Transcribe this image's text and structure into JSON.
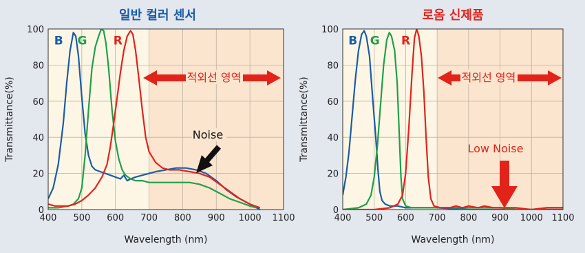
{
  "colors": {
    "background": "#e3e7ee",
    "title": "#1a5ca8",
    "title_right": "#e2231a",
    "plot_fill": "#fdf6e4",
    "ir_fill": "#fbe5cf",
    "B": "#1a5ca8",
    "G": "#1fa04a",
    "R": "#e2231a",
    "arrow_red": "#e2231a",
    "arrow_black": "#111111"
  },
  "chart_data": [
    {
      "type": "line",
      "title": "일반 컬러 센서",
      "xlabel": "Wavelength (nm)",
      "ylabel": "Transmittance(%)",
      "xlim": [
        400,
        1100
      ],
      "ylim": [
        0,
        100
      ],
      "xticks": [
        "400",
        "500",
        "600",
        "700",
        "800",
        "900",
        "1000",
        "1100"
      ],
      "yticks": [
        "0",
        "20",
        "40",
        "60",
        "80",
        "100"
      ],
      "grid": true,
      "ir_region_from": 700,
      "series": [
        {
          "name": "B",
          "color_key": "B",
          "label_at": [
            418,
            94
          ],
          "points": [
            [
              400,
              6
            ],
            [
              415,
              12
            ],
            [
              430,
              25
            ],
            [
              445,
              48
            ],
            [
              455,
              70
            ],
            [
              465,
              88
            ],
            [
              475,
              98
            ],
            [
              482,
              96
            ],
            [
              490,
              85
            ],
            [
              500,
              62
            ],
            [
              510,
              42
            ],
            [
              520,
              30
            ],
            [
              530,
              24
            ],
            [
              540,
              22
            ],
            [
              555,
              21
            ],
            [
              570,
              20
            ],
            [
              585,
              19
            ],
            [
              600,
              18
            ],
            [
              615,
              17
            ],
            [
              625,
              19
            ],
            [
              635,
              16
            ],
            [
              645,
              17
            ],
            [
              660,
              18
            ],
            [
              680,
              19
            ],
            [
              700,
              20
            ],
            [
              720,
              21
            ],
            [
              750,
              22
            ],
            [
              780,
              23
            ],
            [
              810,
              23
            ],
            [
              840,
              22
            ],
            [
              870,
              20
            ],
            [
              900,
              16
            ],
            [
              930,
              11
            ],
            [
              960,
              7
            ],
            [
              990,
              4
            ],
            [
              1010,
              2
            ],
            [
              1030,
              0
            ]
          ]
        },
        {
          "name": "G",
          "color_key": "G",
          "label_at": [
            487,
            94
          ],
          "points": [
            [
              400,
              1
            ],
            [
              430,
              1
            ],
            [
              460,
              2
            ],
            [
              475,
              3
            ],
            [
              490,
              6
            ],
            [
              500,
              12
            ],
            [
              510,
              30
            ],
            [
              520,
              55
            ],
            [
              530,
              78
            ],
            [
              540,
              90
            ],
            [
              550,
              96
            ],
            [
              558,
              100
            ],
            [
              565,
              99
            ],
            [
              572,
              92
            ],
            [
              580,
              78
            ],
            [
              590,
              55
            ],
            [
              600,
              38
            ],
            [
              610,
              28
            ],
            [
              620,
              22
            ],
            [
              630,
              19
            ],
            [
              645,
              17
            ],
            [
              660,
              16
            ],
            [
              680,
              16
            ],
            [
              700,
              15
            ],
            [
              730,
              15
            ],
            [
              760,
              15
            ],
            [
              790,
              15
            ],
            [
              820,
              15
            ],
            [
              850,
              14
            ],
            [
              880,
              12
            ],
            [
              910,
              9
            ],
            [
              940,
              6
            ],
            [
              970,
              4
            ],
            [
              1000,
              2
            ],
            [
              1020,
              1
            ]
          ]
        },
        {
          "name": "R",
          "color_key": "R",
          "label_at": [
            594,
            94
          ],
          "points": [
            [
              400,
              3
            ],
            [
              420,
              2
            ],
            [
              440,
              2
            ],
            [
              460,
              2
            ],
            [
              480,
              3
            ],
            [
              500,
              5
            ],
            [
              520,
              8
            ],
            [
              540,
              12
            ],
            [
              560,
              18
            ],
            [
              575,
              25
            ],
            [
              585,
              35
            ],
            [
              595,
              48
            ],
            [
              605,
              62
            ],
            [
              615,
              76
            ],
            [
              625,
              88
            ],
            [
              635,
              96
            ],
            [
              645,
              99
            ],
            [
              652,
              97
            ],
            [
              660,
              88
            ],
            [
              670,
              72
            ],
            [
              680,
              55
            ],
            [
              690,
              40
            ],
            [
              700,
              32
            ],
            [
              720,
              26
            ],
            [
              740,
              23
            ],
            [
              760,
              22
            ],
            [
              790,
              22
            ],
            [
              820,
              21
            ],
            [
              850,
              20
            ],
            [
              880,
              18
            ],
            [
              910,
              14
            ],
            [
              940,
              10
            ],
            [
              970,
              6
            ],
            [
              1000,
              3
            ],
            [
              1030,
              1
            ]
          ]
        }
      ],
      "annotations": {
        "ir_label": "적외선 영역",
        "noise_label": "Noise"
      }
    },
    {
      "type": "line",
      "title": "로옴 신제품",
      "xlabel": "Wavelength (nm)",
      "ylabel": "Transmittance(%)",
      "xlim": [
        400,
        1100
      ],
      "ylim": [
        0,
        100
      ],
      "xticks": [
        "400",
        "500",
        "600",
        "700",
        "800",
        "900",
        "1000",
        "1100"
      ],
      "yticks": [
        "0",
        "20",
        "40",
        "60",
        "80",
        "100"
      ],
      "grid": true,
      "ir_region_from": 700,
      "series": [
        {
          "name": "B",
          "color_key": "B",
          "label_at": [
            418,
            94
          ],
          "points": [
            [
              400,
              8
            ],
            [
              410,
              18
            ],
            [
              420,
              32
            ],
            [
              430,
              52
            ],
            [
              440,
              72
            ],
            [
              450,
              88
            ],
            [
              460,
              97
            ],
            [
              468,
              99
            ],
            [
              475,
              96
            ],
            [
              485,
              85
            ],
            [
              495,
              62
            ],
            [
              505,
              40
            ],
            [
              512,
              22
            ],
            [
              518,
              10
            ],
            [
              525,
              5
            ],
            [
              535,
              3
            ],
            [
              550,
              2
            ],
            [
              575,
              2
            ],
            [
              600,
              1
            ],
            [
              650,
              1
            ],
            [
              700,
              1
            ],
            [
              800,
              0
            ],
            [
              900,
              0
            ],
            [
              1000,
              0
            ],
            [
              1100,
              0
            ]
          ]
        },
        {
          "name": "G",
          "color_key": "G",
          "label_at": [
            487,
            94
          ],
          "points": [
            [
              400,
              0
            ],
            [
              450,
              1
            ],
            [
              475,
              3
            ],
            [
              490,
              8
            ],
            [
              500,
              18
            ],
            [
              510,
              35
            ],
            [
              520,
              58
            ],
            [
              530,
              80
            ],
            [
              540,
              94
            ],
            [
              548,
              98
            ],
            [
              555,
              96
            ],
            [
              565,
              88
            ],
            [
              573,
              70
            ],
            [
              580,
              40
            ],
            [
              585,
              18
            ],
            [
              590,
              6
            ],
            [
              600,
              2
            ],
            [
              620,
              1
            ],
            [
              650,
              1
            ],
            [
              700,
              1
            ],
            [
              800,
              1
            ],
            [
              900,
              1
            ],
            [
              950,
              0
            ],
            [
              1000,
              0
            ],
            [
              1050,
              1
            ],
            [
              1100,
              1
            ]
          ]
        },
        {
          "name": "R",
          "color_key": "R",
          "label_at": [
            586,
            94
          ],
          "points": [
            [
              400,
              0
            ],
            [
              500,
              0
            ],
            [
              550,
              1
            ],
            [
              575,
              3
            ],
            [
              590,
              8
            ],
            [
              600,
              20
            ],
            [
              610,
              45
            ],
            [
              620,
              75
            ],
            [
              628,
              95
            ],
            [
              635,
              100
            ],
            [
              642,
              96
            ],
            [
              650,
              85
            ],
            [
              658,
              65
            ],
            [
              665,
              40
            ],
            [
              672,
              18
            ],
            [
              680,
              6
            ],
            [
              690,
              2
            ],
            [
              710,
              1
            ],
            [
              740,
              1
            ],
            [
              760,
              2
            ],
            [
              780,
              1
            ],
            [
              800,
              2
            ],
            [
              830,
              1
            ],
            [
              850,
              2
            ],
            [
              880,
              1
            ],
            [
              900,
              1
            ],
            [
              950,
              1
            ],
            [
              1000,
              0
            ],
            [
              1050,
              1
            ],
            [
              1100,
              1
            ]
          ]
        }
      ],
      "annotations": {
        "ir_label": "적외선 영역",
        "noise_label": "Low Noise"
      }
    }
  ]
}
